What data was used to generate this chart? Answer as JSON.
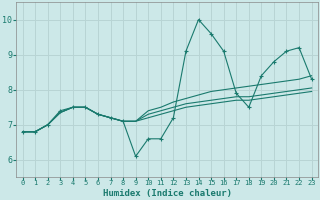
{
  "xlabel": "Humidex (Indice chaleur)",
  "ylabel": "",
  "background_color": "#cce8e8",
  "grid_color": "#b8d4d4",
  "line_color": "#1a7a6e",
  "xlim": [
    -0.5,
    23.5
  ],
  "ylim": [
    5.5,
    10.5
  ],
  "yticks": [
    6,
    7,
    8,
    9,
    10
  ],
  "xticks": [
    0,
    1,
    2,
    3,
    4,
    5,
    6,
    7,
    8,
    9,
    10,
    11,
    12,
    13,
    14,
    15,
    16,
    17,
    18,
    19,
    20,
    21,
    22,
    23
  ],
  "series1_x": [
    0,
    1,
    2,
    3,
    4,
    5,
    6,
    7,
    8,
    9,
    10,
    11,
    12,
    13,
    14,
    15,
    16,
    17,
    18,
    19,
    20,
    21,
    22,
    23
  ],
  "series1_y": [
    6.8,
    6.8,
    7.0,
    7.4,
    7.5,
    7.5,
    7.3,
    7.2,
    7.1,
    6.1,
    6.6,
    6.6,
    7.2,
    9.1,
    10.0,
    9.6,
    9.1,
    7.9,
    7.5,
    8.4,
    8.8,
    9.1,
    9.2,
    8.3
  ],
  "series2_x": [
    0,
    1,
    2,
    3,
    4,
    5,
    6,
    7,
    8,
    9,
    10,
    11,
    12,
    13,
    14,
    15,
    16,
    17,
    18,
    19,
    20,
    21,
    22,
    23
  ],
  "series2_y": [
    6.8,
    6.8,
    7.0,
    7.35,
    7.5,
    7.5,
    7.3,
    7.2,
    7.1,
    7.1,
    7.4,
    7.5,
    7.65,
    7.75,
    7.85,
    7.95,
    8.0,
    8.05,
    8.1,
    8.15,
    8.2,
    8.25,
    8.3,
    8.4
  ],
  "series3_x": [
    0,
    1,
    2,
    3,
    4,
    5,
    6,
    7,
    8,
    9,
    10,
    11,
    12,
    13,
    14,
    15,
    16,
    17,
    18,
    19,
    20,
    21,
    22,
    23
  ],
  "series3_y": [
    6.8,
    6.8,
    7.0,
    7.35,
    7.5,
    7.5,
    7.3,
    7.2,
    7.1,
    7.1,
    7.3,
    7.4,
    7.5,
    7.6,
    7.65,
    7.7,
    7.75,
    7.8,
    7.8,
    7.85,
    7.9,
    7.95,
    8.0,
    8.05
  ],
  "series4_x": [
    0,
    1,
    2,
    3,
    4,
    5,
    6,
    7,
    8,
    9,
    10,
    11,
    12,
    13,
    14,
    15,
    16,
    17,
    18,
    19,
    20,
    21,
    22,
    23
  ],
  "series4_y": [
    6.8,
    6.8,
    7.0,
    7.35,
    7.5,
    7.5,
    7.3,
    7.2,
    7.1,
    7.1,
    7.2,
    7.3,
    7.4,
    7.5,
    7.55,
    7.6,
    7.65,
    7.7,
    7.7,
    7.75,
    7.8,
    7.85,
    7.9,
    7.95
  ]
}
